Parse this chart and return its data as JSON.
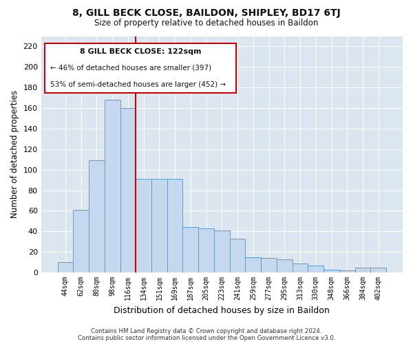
{
  "title": "8, GILL BECK CLOSE, BAILDON, SHIPLEY, BD17 6TJ",
  "subtitle": "Size of property relative to detached houses in Baildon",
  "xlabel": "Distribution of detached houses by size in Baildon",
  "ylabel": "Number of detached properties",
  "bar_color": "#c5d8ed",
  "bar_edge_color": "#5b9bd5",
  "plot_bg_color": "#dce6f0",
  "fig_bg_color": "#ffffff",
  "grid_color": "#ffffff",
  "annotation_box_color": "#ffffff",
  "annotation_border_color": "#cc0000",
  "vline_color": "#cc0000",
  "footer1": "Contains HM Land Registry data © Crown copyright and database right 2024.",
  "footer2": "Contains public sector information licensed under the Open Government Licence v3.0.",
  "annotation_title": "8 GILL BECK CLOSE: 122sqm",
  "annotation_line1": "← 46% of detached houses are smaller (397)",
  "annotation_line2": "53% of semi-detached houses are larger (452) →",
  "categories": [
    "44sqm",
    "62sqm",
    "80sqm",
    "98sqm",
    "116sqm",
    "134sqm",
    "151sqm",
    "169sqm",
    "187sqm",
    "205sqm",
    "223sqm",
    "241sqm",
    "259sqm",
    "277sqm",
    "295sqm",
    "313sqm",
    "330sqm",
    "348sqm",
    "366sqm",
    "384sqm",
    "402sqm"
  ],
  "values": [
    10,
    61,
    109,
    168,
    160,
    91,
    91,
    91,
    44,
    43,
    41,
    33,
    15,
    14,
    13,
    9,
    7,
    3,
    2,
    5,
    5
  ],
  "vline_position": 4.5,
  "ylim": [
    0,
    230
  ],
  "yticks": [
    0,
    20,
    40,
    60,
    80,
    100,
    120,
    140,
    160,
    180,
    200,
    220
  ]
}
